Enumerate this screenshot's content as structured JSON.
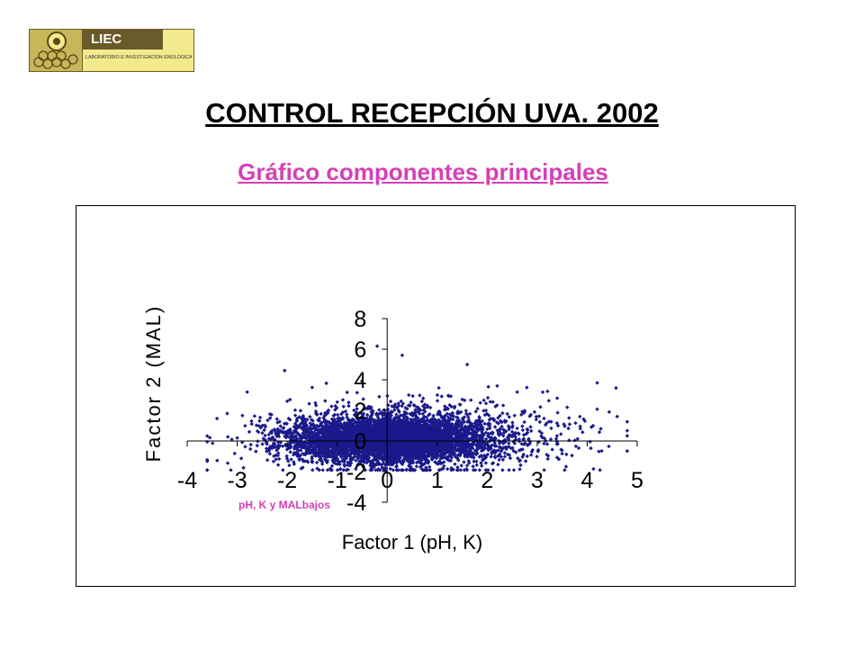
{
  "logo": {
    "name": "LIEC",
    "subtitle": "LABORATORIO E INVESTIGACIÓN ENOLÓGICA DE CASTILLA"
  },
  "header": {
    "title": "CONTROL RECEPCIÓN UVA. 2002"
  },
  "chart_data": {
    "type": "scatter",
    "title": "Gráfico componentes principales",
    "xlabel": "Factor 1 (pH, K)",
    "ylabel": "Factor 2 (MAL)",
    "xlim": [
      -4,
      5
    ],
    "ylim": [
      -4,
      8
    ],
    "x_ticks": [
      -4,
      -3,
      -2,
      -1,
      0,
      1,
      2,
      3,
      4,
      5
    ],
    "y_ticks": [
      -4,
      -2,
      0,
      2,
      4,
      6,
      8
    ],
    "grid": false,
    "legend": "none",
    "marker": "diamond",
    "series_color": "#1a1a8c",
    "annotation": "pH, K y MALbajos",
    "annotation_color": "#d63fb5",
    "point_cloud": {
      "center": [
        0.0,
        0.1
      ],
      "core_spread": [
        0.9,
        0.7
      ],
      "outer_spread": [
        1.6,
        1.3
      ],
      "sample_points": [
        [
          -3.2,
          1.8
        ],
        [
          -2.8,
          3.2
        ],
        [
          -2.0,
          2.6
        ],
        [
          -1.5,
          3.5
        ],
        [
          -0.2,
          6.2
        ],
        [
          0.3,
          5.6
        ],
        [
          1.6,
          5.0
        ],
        [
          2.2,
          3.6
        ],
        [
          2.6,
          3.2
        ],
        [
          3.4,
          2.8
        ],
        [
          3.6,
          2.2
        ],
        [
          4.2,
          3.8
        ],
        [
          4.6,
          1.6
        ],
        [
          3.2,
          -0.2
        ],
        [
          2.8,
          -1.0
        ],
        [
          1.6,
          -1.6
        ],
        [
          -1.4,
          -1.8
        ],
        [
          -2.6,
          -0.3
        ],
        [
          -3.0,
          0.2
        ],
        [
          -1.0,
          -1.2
        ]
      ]
    }
  }
}
